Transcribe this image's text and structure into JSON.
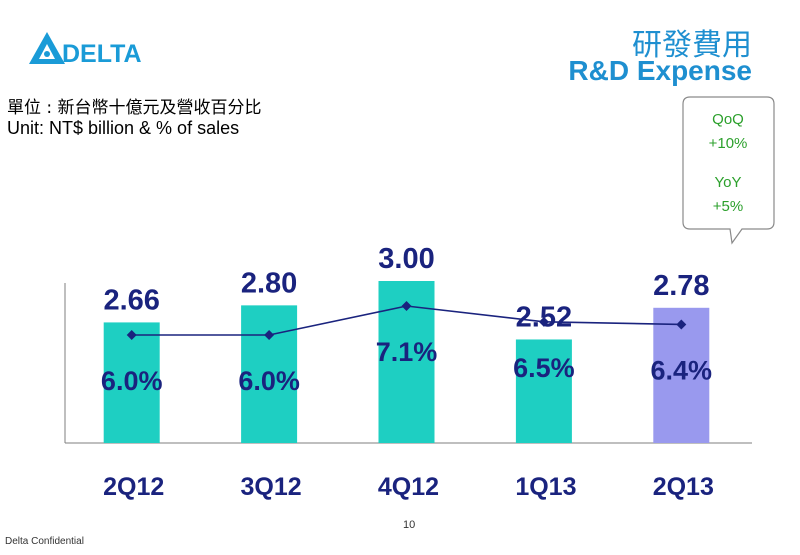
{
  "brand": {
    "logo_text": "DELTA",
    "logo_icon": "delta-triangle-icon",
    "color": "#1a9bd7"
  },
  "header": {
    "title_cn": "研發費用",
    "title_en": "R&D Expense"
  },
  "unit": {
    "cn": "單位 : 新台幣十億元及營收百分比",
    "en": "Unit: NT$ billion & % of sales"
  },
  "callout": {
    "qoq_label": "QoQ",
    "qoq_value": "+10%",
    "yoy_label": "YoY",
    "yoy_value": "+5%"
  },
  "chart_data": {
    "type": "bar",
    "categories": [
      "2Q12",
      "3Q12",
      "4Q12",
      "1Q13",
      "2Q13"
    ],
    "series": [
      {
        "values": [
          2.66,
          2.8,
          3.0,
          2.52,
          2.78
        ],
        "labels": [
          "2.66",
          "2.80",
          "3.00",
          "2.52",
          "2.78"
        ],
        "colors": [
          "#1ecfc2",
          "#1ecfc2",
          "#1ecfc2",
          "#1ecfc2",
          "#9999ee"
        ]
      },
      {
        "type": "line",
        "values": [
          6.0,
          6.0,
          7.1,
          6.5,
          6.4
        ],
        "labels": [
          "6.0%",
          "6.0%",
          "7.1%",
          "6.5%",
          "6.4%"
        ],
        "color": "#1a237e"
      }
    ],
    "label_color": "#1a237e"
  },
  "footer": {
    "confidential": "Delta Confidential",
    "page": "10"
  }
}
